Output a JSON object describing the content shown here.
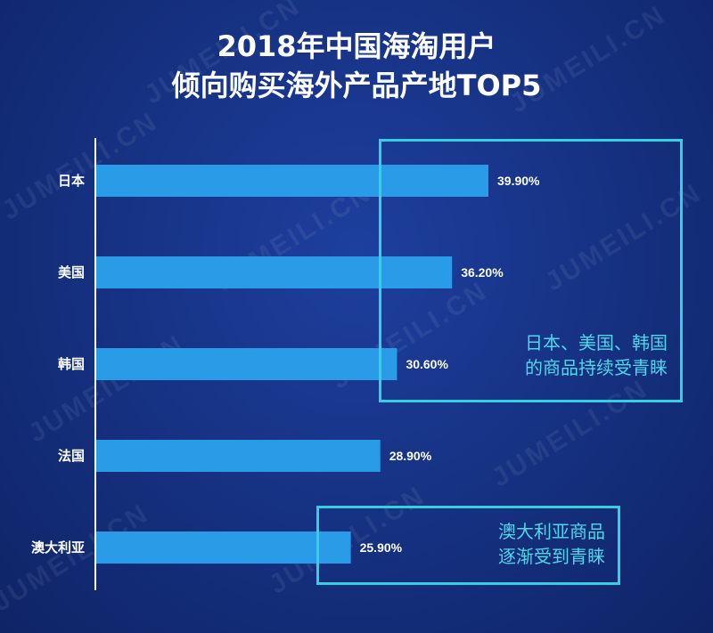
{
  "title": {
    "line1": "2018年中国海淘用户",
    "line2": "倾向购买海外产品产地TOP5"
  },
  "watermark": "JUMEILI.CN",
  "colors": {
    "bar": "#2a9be6",
    "axis": "#ffffff",
    "callout": "#37cfe0"
  },
  "callouts": [
    {
      "lines": [
        "日本、美国、韩国",
        "的商品持续受青睐"
      ]
    },
    {
      "lines": [
        "澳大利亚商品",
        "逐渐受到青睐"
      ]
    }
  ],
  "chart_data": {
    "type": "bar",
    "orientation": "horizontal",
    "categories": [
      "日本",
      "美国",
      "韩国",
      "法国",
      "澳大利亚"
    ],
    "values": [
      39.9,
      36.2,
      30.6,
      28.9,
      25.9
    ],
    "value_labels": [
      "39.90%",
      "36.20%",
      "30.60%",
      "28.90%",
      "25.90%"
    ],
    "unit": "%",
    "xlim": [
      0,
      55
    ],
    "title": "2018年中国海淘用户倾向购买海外产品产地TOP5",
    "xlabel": "",
    "ylabel": "",
    "grid": false
  }
}
